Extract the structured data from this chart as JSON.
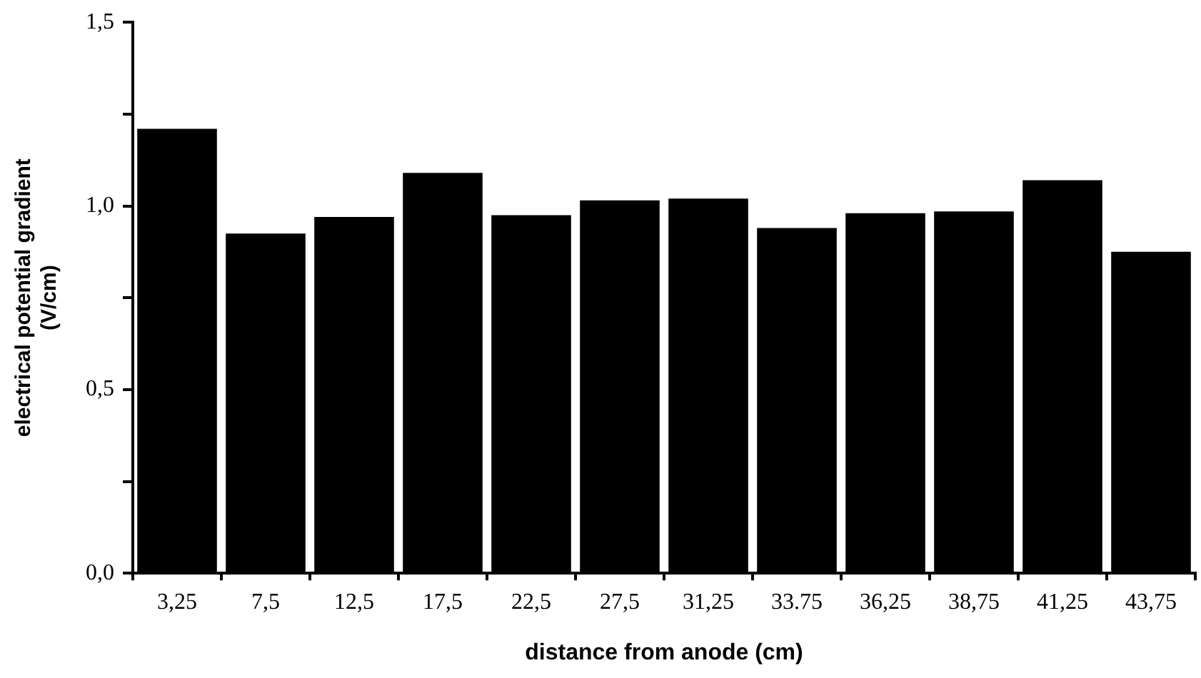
{
  "chart_data": {
    "type": "bar",
    "xlabel": "distance from anode (cm)",
    "ylabel": "electrical potential gradient\n(V/cm)",
    "categories": [
      "3,25",
      "7,5",
      "12,5",
      "17,5",
      "22,5",
      "27,5",
      "31,25",
      "33.75",
      "36,25",
      "38,75",
      "41,25",
      "43,75"
    ],
    "values": [
      1.21,
      0.925,
      0.97,
      1.09,
      0.975,
      1.015,
      1.02,
      0.94,
      0.98,
      0.985,
      1.07,
      0.875
    ],
    "color": "#000000",
    "ylim": [
      0,
      1.5
    ],
    "yticks": [
      {
        "value": 0,
        "label": "0,0"
      },
      {
        "value": 0.25,
        "label": null
      },
      {
        "value": 0.5,
        "label": "0,5"
      },
      {
        "value": 0.75,
        "label": null
      },
      {
        "value": 1,
        "label": "1,0"
      },
      {
        "value": 1.25,
        "label": null
      },
      {
        "value": 1.5,
        "label": "1,5"
      }
    ],
    "grid": false,
    "legend": false
  }
}
